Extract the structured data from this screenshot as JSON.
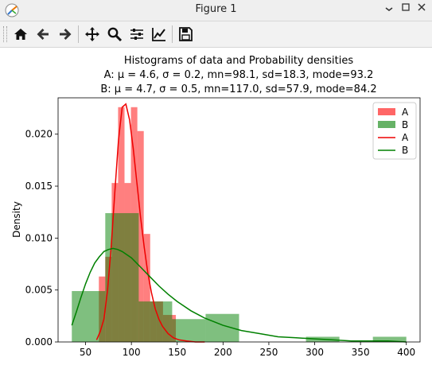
{
  "window": {
    "title": "Figure 1",
    "buttons": [
      "minimize-button",
      "maximize-button",
      "close-button"
    ]
  },
  "toolbar": {
    "items": [
      "home-icon",
      "back-icon",
      "forward-icon",
      "pan-icon",
      "zoom-icon",
      "subplots-icon",
      "customize-icon",
      "save-icon"
    ]
  },
  "figure": {
    "title_line1": "Histograms of data and Probability densities",
    "title_line2": "A: μ = 4.6, σ = 0.2, mn=98.1, sd=18.3, mode=93.2",
    "title_line3": "B: μ = 4.7, σ = 0.5, mn=117.0, sd=57.9, mode=84.2"
  },
  "chart_data": {
    "type": "bar",
    "title": "Histograms of data and Probability densities\nA: μ = 4.6, σ = 0.2, mn=98.1, sd=18.3, mode=93.2\nB: μ = 4.7, σ = 0.5, mn=117.0, sd=57.9, mode=84.2",
    "xlabel": "",
    "ylabel": "Density",
    "xlim": [
      20,
      415
    ],
    "ylim": [
      0,
      0.0235
    ],
    "xticks": [
      50,
      100,
      150,
      200,
      250,
      300,
      350,
      400
    ],
    "yticks": [
      0.0,
      0.005,
      0.01,
      0.015,
      0.02
    ],
    "ytick_labels": [
      "0.000",
      "0.005",
      "0.010",
      "0.015",
      "0.020"
    ],
    "grid": false,
    "legend_position": "top-right",
    "legend": [
      {
        "label": "A",
        "kind": "patch",
        "color": "#ff6666"
      },
      {
        "label": "B",
        "kind": "patch",
        "color": "#66b266"
      },
      {
        "label": "A",
        "kind": "line",
        "color": "#ee0000"
      },
      {
        "label": "B",
        "kind": "line",
        "color": "#008000"
      }
    ],
    "histograms": [
      {
        "name": "A",
        "color": "#ff0000",
        "alpha": 0.5,
        "bins": [
          {
            "x0": 64.5,
            "x1": 71.5,
            "value": 0.0063
          },
          {
            "x0": 71.5,
            "x1": 78.5,
            "value": 0.0082
          },
          {
            "x0": 78.5,
            "x1": 85.5,
            "value": 0.0153
          },
          {
            "x0": 85.5,
            "x1": 92.5,
            "value": 0.0226
          },
          {
            "x0": 92.5,
            "x1": 99.5,
            "value": 0.0153
          },
          {
            "x0": 99.5,
            "x1": 106.5,
            "value": 0.0226
          },
          {
            "x0": 106.5,
            "x1": 113.5,
            "value": 0.0203
          },
          {
            "x0": 113.5,
            "x1": 120.5,
            "value": 0.0104
          },
          {
            "x0": 120.5,
            "x1": 127.5,
            "value": 0.0039
          },
          {
            "x0": 127.5,
            "x1": 134.5,
            "value": 0.0039
          },
          {
            "x0": 134.5,
            "x1": 141.5,
            "value": 0.0026
          },
          {
            "x0": 141.5,
            "x1": 148.5,
            "value": 0.0026
          }
        ]
      },
      {
        "name": "B",
        "color": "#008000",
        "alpha": 0.5,
        "bins": [
          {
            "x0": 35,
            "x1": 71.5,
            "value": 0.0049
          },
          {
            "x0": 71.5,
            "x1": 108,
            "value": 0.0124
          },
          {
            "x0": 108,
            "x1": 144.5,
            "value": 0.0039
          },
          {
            "x0": 144.5,
            "x1": 181,
            "value": 0.0022
          },
          {
            "x0": 181,
            "x1": 217.5,
            "value": 0.0027
          },
          {
            "x0": 217.5,
            "x1": 254,
            "value": 0.0
          },
          {
            "x0": 254,
            "x1": 290.5,
            "value": 0.0
          },
          {
            "x0": 290.5,
            "x1": 327,
            "value": 0.0005
          },
          {
            "x0": 327,
            "x1": 363.5,
            "value": 0.0
          },
          {
            "x0": 363.5,
            "x1": 400,
            "value": 0.0005
          }
        ]
      }
    ],
    "series": [
      {
        "name": "A",
        "color": "#ee0000",
        "x": [
          62,
          66,
          70,
          74,
          78,
          82,
          86,
          90,
          94,
          98,
          102,
          106,
          110,
          114,
          118,
          122,
          126,
          130,
          134,
          140,
          146,
          152,
          160,
          170,
          180
        ],
        "y": [
          0.0002,
          0.001,
          0.0022,
          0.005,
          0.0092,
          0.0145,
          0.0195,
          0.0226,
          0.0229,
          0.0214,
          0.0186,
          0.0153,
          0.012,
          0.0091,
          0.0066,
          0.0047,
          0.0032,
          0.0022,
          0.0015,
          0.0008,
          0.0004,
          0.0002,
          0.0001,
          0.0,
          0.0
        ]
      },
      {
        "name": "B",
        "color": "#008000",
        "x": [
          35,
          40,
          45,
          50,
          55,
          60,
          65,
          70,
          75,
          80,
          85,
          90,
          95,
          100,
          110,
          120,
          130,
          140,
          150,
          165,
          180,
          200,
          220,
          240,
          260,
          280,
          300,
          320,
          340,
          360,
          380,
          400
        ],
        "y": [
          0.0016,
          0.0029,
          0.0043,
          0.0056,
          0.0067,
          0.0076,
          0.0082,
          0.0087,
          0.0089,
          0.009,
          0.0089,
          0.0087,
          0.0084,
          0.0081,
          0.0072,
          0.0063,
          0.0054,
          0.0046,
          0.0039,
          0.003,
          0.0023,
          0.0016,
          0.0011,
          0.0008,
          0.0005,
          0.0004,
          0.0003,
          0.0002,
          0.0001,
          0.0001,
          0.0001,
          0.0
        ]
      }
    ]
  }
}
